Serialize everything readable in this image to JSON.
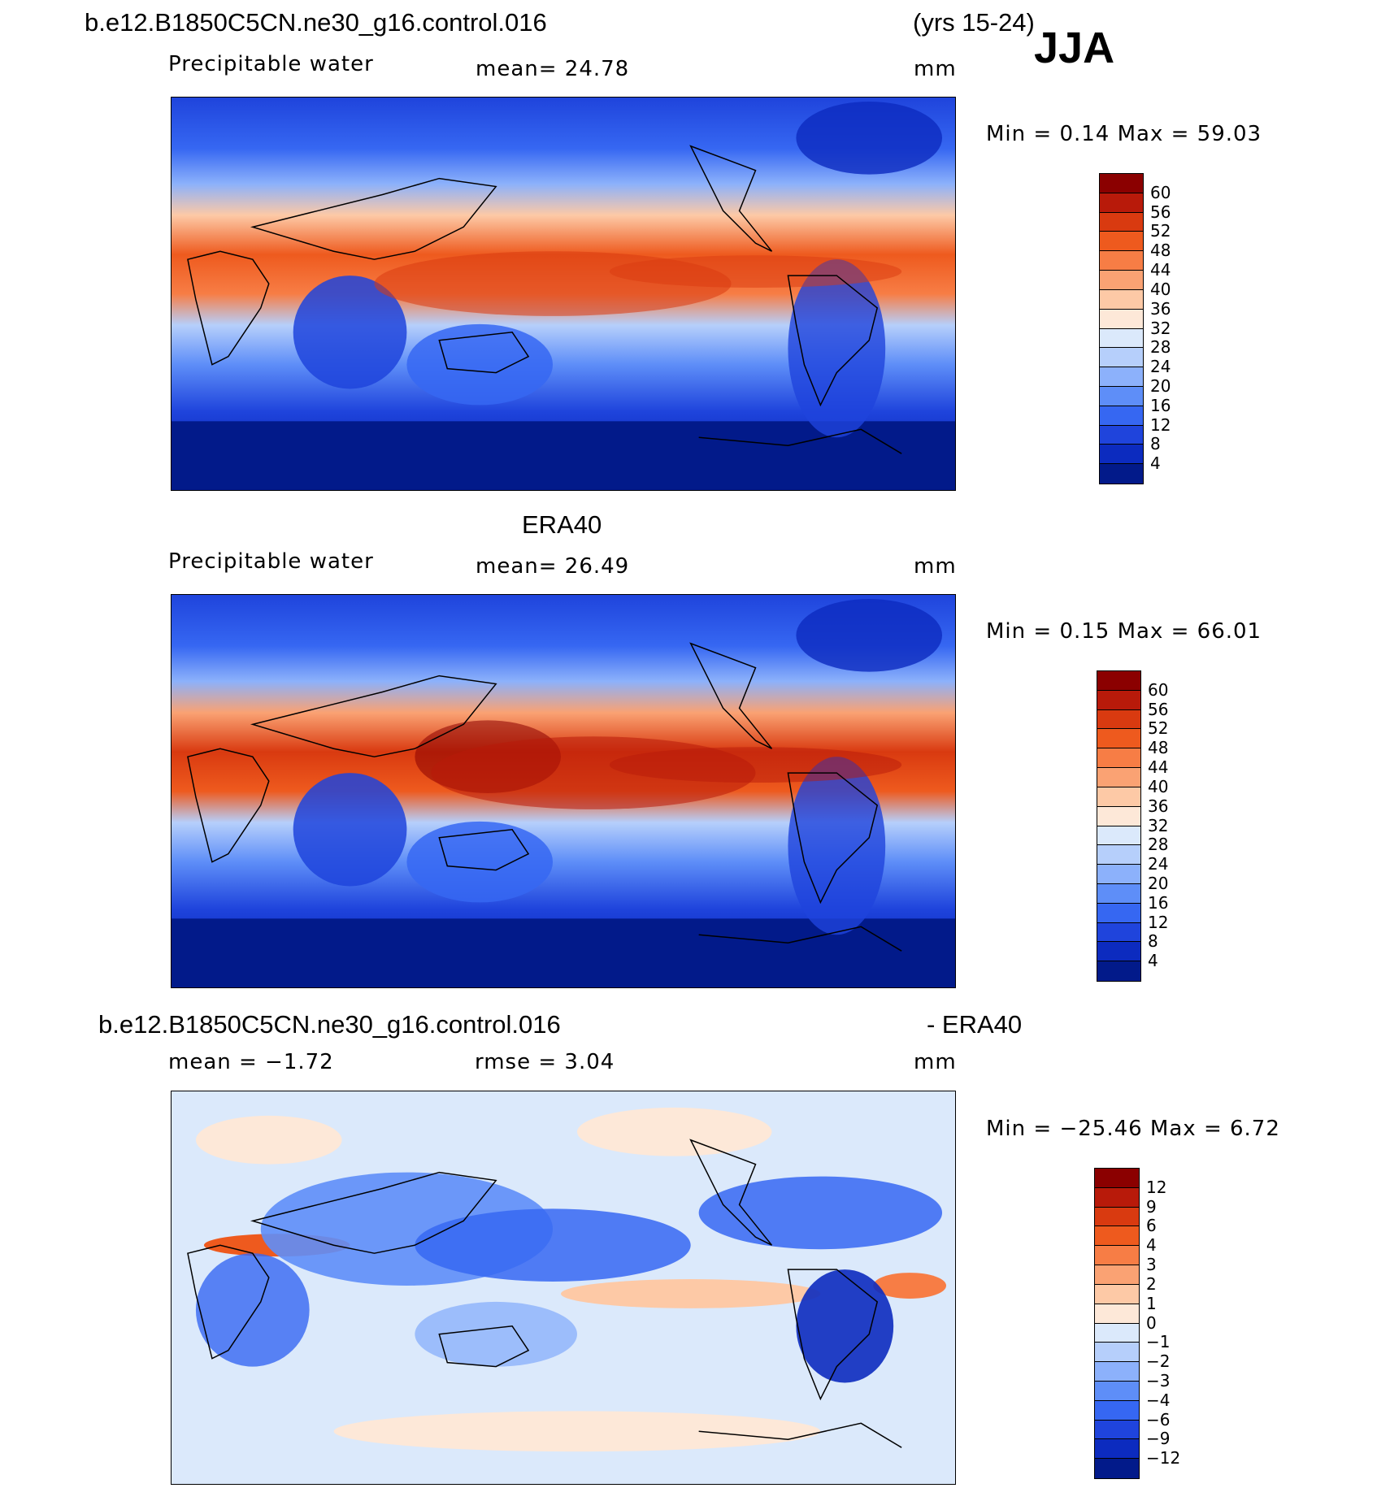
{
  "header": {
    "case_name": "b.e12.B1850C5CN.ne30_g16.control.016",
    "years": "(yrs 15-24)",
    "season": "JJA"
  },
  "panels": [
    {
      "id": "model",
      "title": "",
      "left_label": "Precipitable water",
      "center_label": "mean=   24.78",
      "units": "mm",
      "minmax": "Min =    0.14  Max =   59.03",
      "colorbar": {
        "labels": [
          "60",
          "56",
          "52",
          "48",
          "44",
          "40",
          "36",
          "32",
          "28",
          "24",
          "20",
          "16",
          "12",
          "8",
          "4"
        ],
        "colors": [
          "#8b0000",
          "#b81a0a",
          "#d93a10",
          "#ee5a1e",
          "#f77d45",
          "#faa273",
          "#fdc9a6",
          "#fde8d8",
          "#dbe9fb",
          "#b6cffb",
          "#8cb1fb",
          "#5e8ef8",
          "#3667f2",
          "#1f44dc",
          "#0c2bbf",
          "#021a8a"
        ]
      }
    },
    {
      "id": "obs",
      "title": "ERA40",
      "left_label": "Precipitable water",
      "center_label": "mean=   26.49",
      "units": "mm",
      "minmax": "Min =    0.15  Max =   66.01",
      "colorbar": {
        "labels": [
          "60",
          "56",
          "52",
          "48",
          "44",
          "40",
          "36",
          "32",
          "28",
          "24",
          "20",
          "16",
          "12",
          "8",
          "4"
        ],
        "colors": [
          "#8b0000",
          "#b81a0a",
          "#d93a10",
          "#ee5a1e",
          "#f77d45",
          "#faa273",
          "#fdc9a6",
          "#fde8d8",
          "#dbe9fb",
          "#b6cffb",
          "#8cb1fb",
          "#5e8ef8",
          "#3667f2",
          "#1f44dc",
          "#0c2bbf",
          "#021a8a"
        ]
      }
    },
    {
      "id": "diff",
      "title_left": "b.e12.B1850C5CN.ne30_g16.control.016",
      "title_right": "- ERA40",
      "left_label": "mean =   −1.72",
      "center_label": "rmse =    3.04",
      "units": "mm",
      "minmax": "Min = −25.46  Max =    6.72",
      "colorbar": {
        "labels": [
          "12",
          "9",
          "6",
          "4",
          "3",
          "2",
          "1",
          "0",
          "−1",
          "−2",
          "−3",
          "−4",
          "−6",
          "−9",
          "−12"
        ],
        "colors": [
          "#8b0000",
          "#b81a0a",
          "#d93a10",
          "#ee5a1e",
          "#f77d45",
          "#faa273",
          "#fdc9a6",
          "#fde8d8",
          "#dbe9fb",
          "#b6cffb",
          "#8cb1fb",
          "#5e8ef8",
          "#3667f2",
          "#1f44dc",
          "#0c2bbf",
          "#021a8a"
        ]
      }
    }
  ]
}
